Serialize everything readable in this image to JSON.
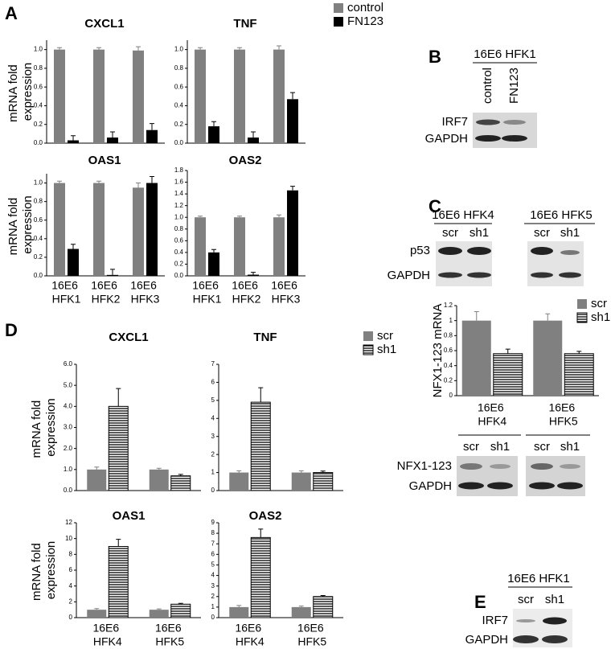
{
  "panel_labels": [
    "A",
    "B",
    "C",
    "D",
    "E"
  ],
  "chart_data": [
    {
      "type": "bar",
      "title": "CXCL1",
      "ylabel": "mRNA fold expression",
      "categories": [
        null,
        null,
        null
      ],
      "series": [
        {
          "color": "#808080",
          "values": [
            1.0,
            1.0,
            0.99
          ],
          "errors": [
            0.02,
            0.02,
            0.04
          ]
        },
        {
          "color": "#000000",
          "values": [
            0.03,
            0.06,
            0.14
          ],
          "errors": [
            0.05,
            0.06,
            0.07
          ]
        }
      ],
      "ylim": [
        0,
        1.1
      ],
      "yticks": [
        {
          "value": 0,
          "label": "0.0"
        },
        0.2,
        0.4,
        0.6,
        0.8,
        {
          "value": 1,
          "label": "1.0"
        }
      ]
    },
    {
      "type": "bar",
      "title": "TNF",
      "categories": [
        null,
        null,
        null
      ],
      "series": [
        {
          "name": "control",
          "color": "#808080",
          "values": [
            1.0,
            1.0,
            1.0
          ],
          "errors": [
            0.02,
            0.02,
            0.04
          ]
        },
        {
          "name": "FN123",
          "color": "#000000",
          "values": [
            0.18,
            0.06,
            0.47
          ],
          "errors": [
            0.05,
            0.06,
            0.07
          ]
        }
      ],
      "ylim": [
        0,
        1.1
      ],
      "yticks": [
        {
          "value": 0,
          "label": "0.0"
        },
        0.2,
        0.4,
        0.6,
        0.8,
        {
          "value": 1,
          "label": "1.0"
        }
      ]
    },
    {
      "type": "bar",
      "title": "OAS1",
      "ylabel": "mRNA fold expression",
      "categories": [
        "16E6 HFK1",
        "16E6 HFK2",
        "16E6 HFK3"
      ],
      "series": [
        {
          "color": "#808080",
          "values": [
            1.0,
            1.0,
            0.95
          ],
          "errors": [
            0.02,
            0.02,
            0.05
          ]
        },
        {
          "color": "#000000",
          "values": [
            0.29,
            0.01,
            1.0
          ],
          "errors": [
            0.05,
            0.06,
            0.07
          ]
        }
      ],
      "ylim": [
        0,
        1.1
      ],
      "yticks": [
        {
          "value": 0,
          "label": "0.0"
        },
        0.2,
        0.4,
        0.6,
        0.8,
        {
          "value": 1,
          "label": "1.0"
        }
      ]
    },
    {
      "type": "bar",
      "title": "OAS2",
      "categories": [
        "16E6 HFK1",
        "16E6 HFK2",
        "16E6 HFK3"
      ],
      "series": [
        {
          "color": "#808080",
          "values": [
            1.0,
            1.0,
            1.0
          ],
          "errors": [
            0.02,
            0.02,
            0.04
          ]
        },
        {
          "color": "#000000",
          "values": [
            0.4,
            0.02,
            1.46
          ],
          "errors": [
            0.05,
            0.04,
            0.07
          ]
        }
      ],
      "ylim": [
        0,
        1.8
      ],
      "yticks": [
        {
          "value": 0,
          "label": "0.0"
        },
        0.2,
        0.4,
        0.6,
        0.8,
        {
          "value": 1,
          "label": "1.0"
        },
        1.2,
        1.4,
        1.6,
        1.8
      ]
    },
    {
      "type": "bar",
      "ylabel": "NFX1-123 mRNA",
      "categories": [
        "16E6 HFK4",
        "16E6 HFK5"
      ],
      "series": [
        {
          "name": "scr",
          "color": "#808080",
          "values": [
            1.0,
            1.0
          ],
          "errors": [
            0.12,
            0.09
          ]
        },
        {
          "name": "sh1",
          "color": "#ffffff",
          "hatch": "horizontal",
          "values": [
            0.56,
            0.56
          ],
          "errors": [
            0.06,
            0.03
          ]
        }
      ],
      "ylim": [
        0,
        1.2
      ],
      "yticks": [
        0,
        0.2,
        0.4,
        0.6,
        0.8,
        1,
        1.2
      ]
    },
    {
      "type": "bar",
      "title": "CXCL1",
      "ylabel": "mRNA fold expression",
      "categories": [
        null,
        null
      ],
      "series": [
        {
          "color": "#808080",
          "values": [
            1.0,
            1.0
          ],
          "errors": [
            0.12,
            0.06
          ]
        },
        {
          "color": "#ffffff",
          "hatch": "horizontal",
          "values": [
            4.0,
            0.7
          ],
          "errors": [
            0.85,
            0.07
          ]
        }
      ],
      "ylim": [
        0,
        6
      ],
      "yticks": [
        {
          "value": 0,
          "label": "0.0"
        },
        {
          "value": 1,
          "label": "1.0"
        },
        {
          "value": 2,
          "label": "2.0"
        },
        {
          "value": 3,
          "label": "3.0"
        },
        {
          "value": 4,
          "label": "4.0"
        },
        {
          "value": 5,
          "label": "5.0"
        },
        {
          "value": 6,
          "label": "6.0"
        }
      ]
    },
    {
      "type": "bar",
      "title": "TNF",
      "categories": [
        null,
        null
      ],
      "series": [
        {
          "name": "scr",
          "color": "#808080",
          "values": [
            1.0,
            1.0
          ],
          "errors": [
            0.1,
            0.1
          ]
        },
        {
          "name": "sh1",
          "color": "#ffffff",
          "hatch": "horizontal",
          "values": [
            4.9,
            1.0
          ],
          "errors": [
            0.8,
            0.08
          ]
        }
      ],
      "ylim": [
        0,
        7
      ],
      "yticks": [
        0,
        1,
        2,
        3,
        4,
        5,
        6,
        7
      ]
    },
    {
      "type": "bar",
      "title": "OAS1",
      "ylabel": "mRNA fold expression",
      "categories": [
        "16E6 HFK4",
        "16E6 HFK5"
      ],
      "series": [
        {
          "color": "#808080",
          "values": [
            1.0,
            1.0
          ],
          "errors": [
            0.15,
            0.1
          ]
        },
        {
          "color": "#ffffff",
          "hatch": "horizontal",
          "values": [
            9.0,
            1.7
          ],
          "errors": [
            0.9,
            0.1
          ]
        }
      ],
      "ylim": [
        0,
        12
      ],
      "yticks": [
        0,
        2,
        4,
        6,
        8,
        10,
        12
      ]
    },
    {
      "type": "bar",
      "title": "OAS2",
      "categories": [
        "16E6 HFK4",
        "16E6 HFK5"
      ],
      "series": [
        {
          "color": "#808080",
          "values": [
            1.0,
            1.0
          ],
          "errors": [
            0.15,
            0.1
          ]
        },
        {
          "color": "#ffffff",
          "hatch": "horizontal",
          "values": [
            7.6,
            2.0
          ],
          "errors": [
            0.8,
            0.1
          ]
        }
      ],
      "ylim": [
        0,
        9
      ],
      "yticks": [
        0,
        1,
        2,
        3,
        4,
        5,
        6,
        7,
        8,
        9
      ]
    }
  ],
  "blots": [
    {
      "title": "16E6 HFK1",
      "lanes": [
        "control",
        "FN123"
      ],
      "rows": [
        "IRF7",
        "GAPDH"
      ]
    },
    {
      "groups": [
        {
          "title": "16E6 HFK4",
          "lanes": [
            "scr",
            "sh1"
          ]
        },
        {
          "title": "16E6 HFK5",
          "lanes": [
            "scr",
            "sh1"
          ]
        }
      ],
      "rows": [
        "p53",
        "GAPDH"
      ]
    },
    {
      "lanes": [
        "scr",
        "sh1",
        "scr",
        "sh1"
      ],
      "rows": [
        "NFX1-123",
        "GAPDH"
      ]
    },
    {
      "title": "16E6 HFK1",
      "lanes": [
        "scr",
        "sh1"
      ],
      "rows": [
        "IRF7",
        "GAPDH"
      ]
    }
  ]
}
